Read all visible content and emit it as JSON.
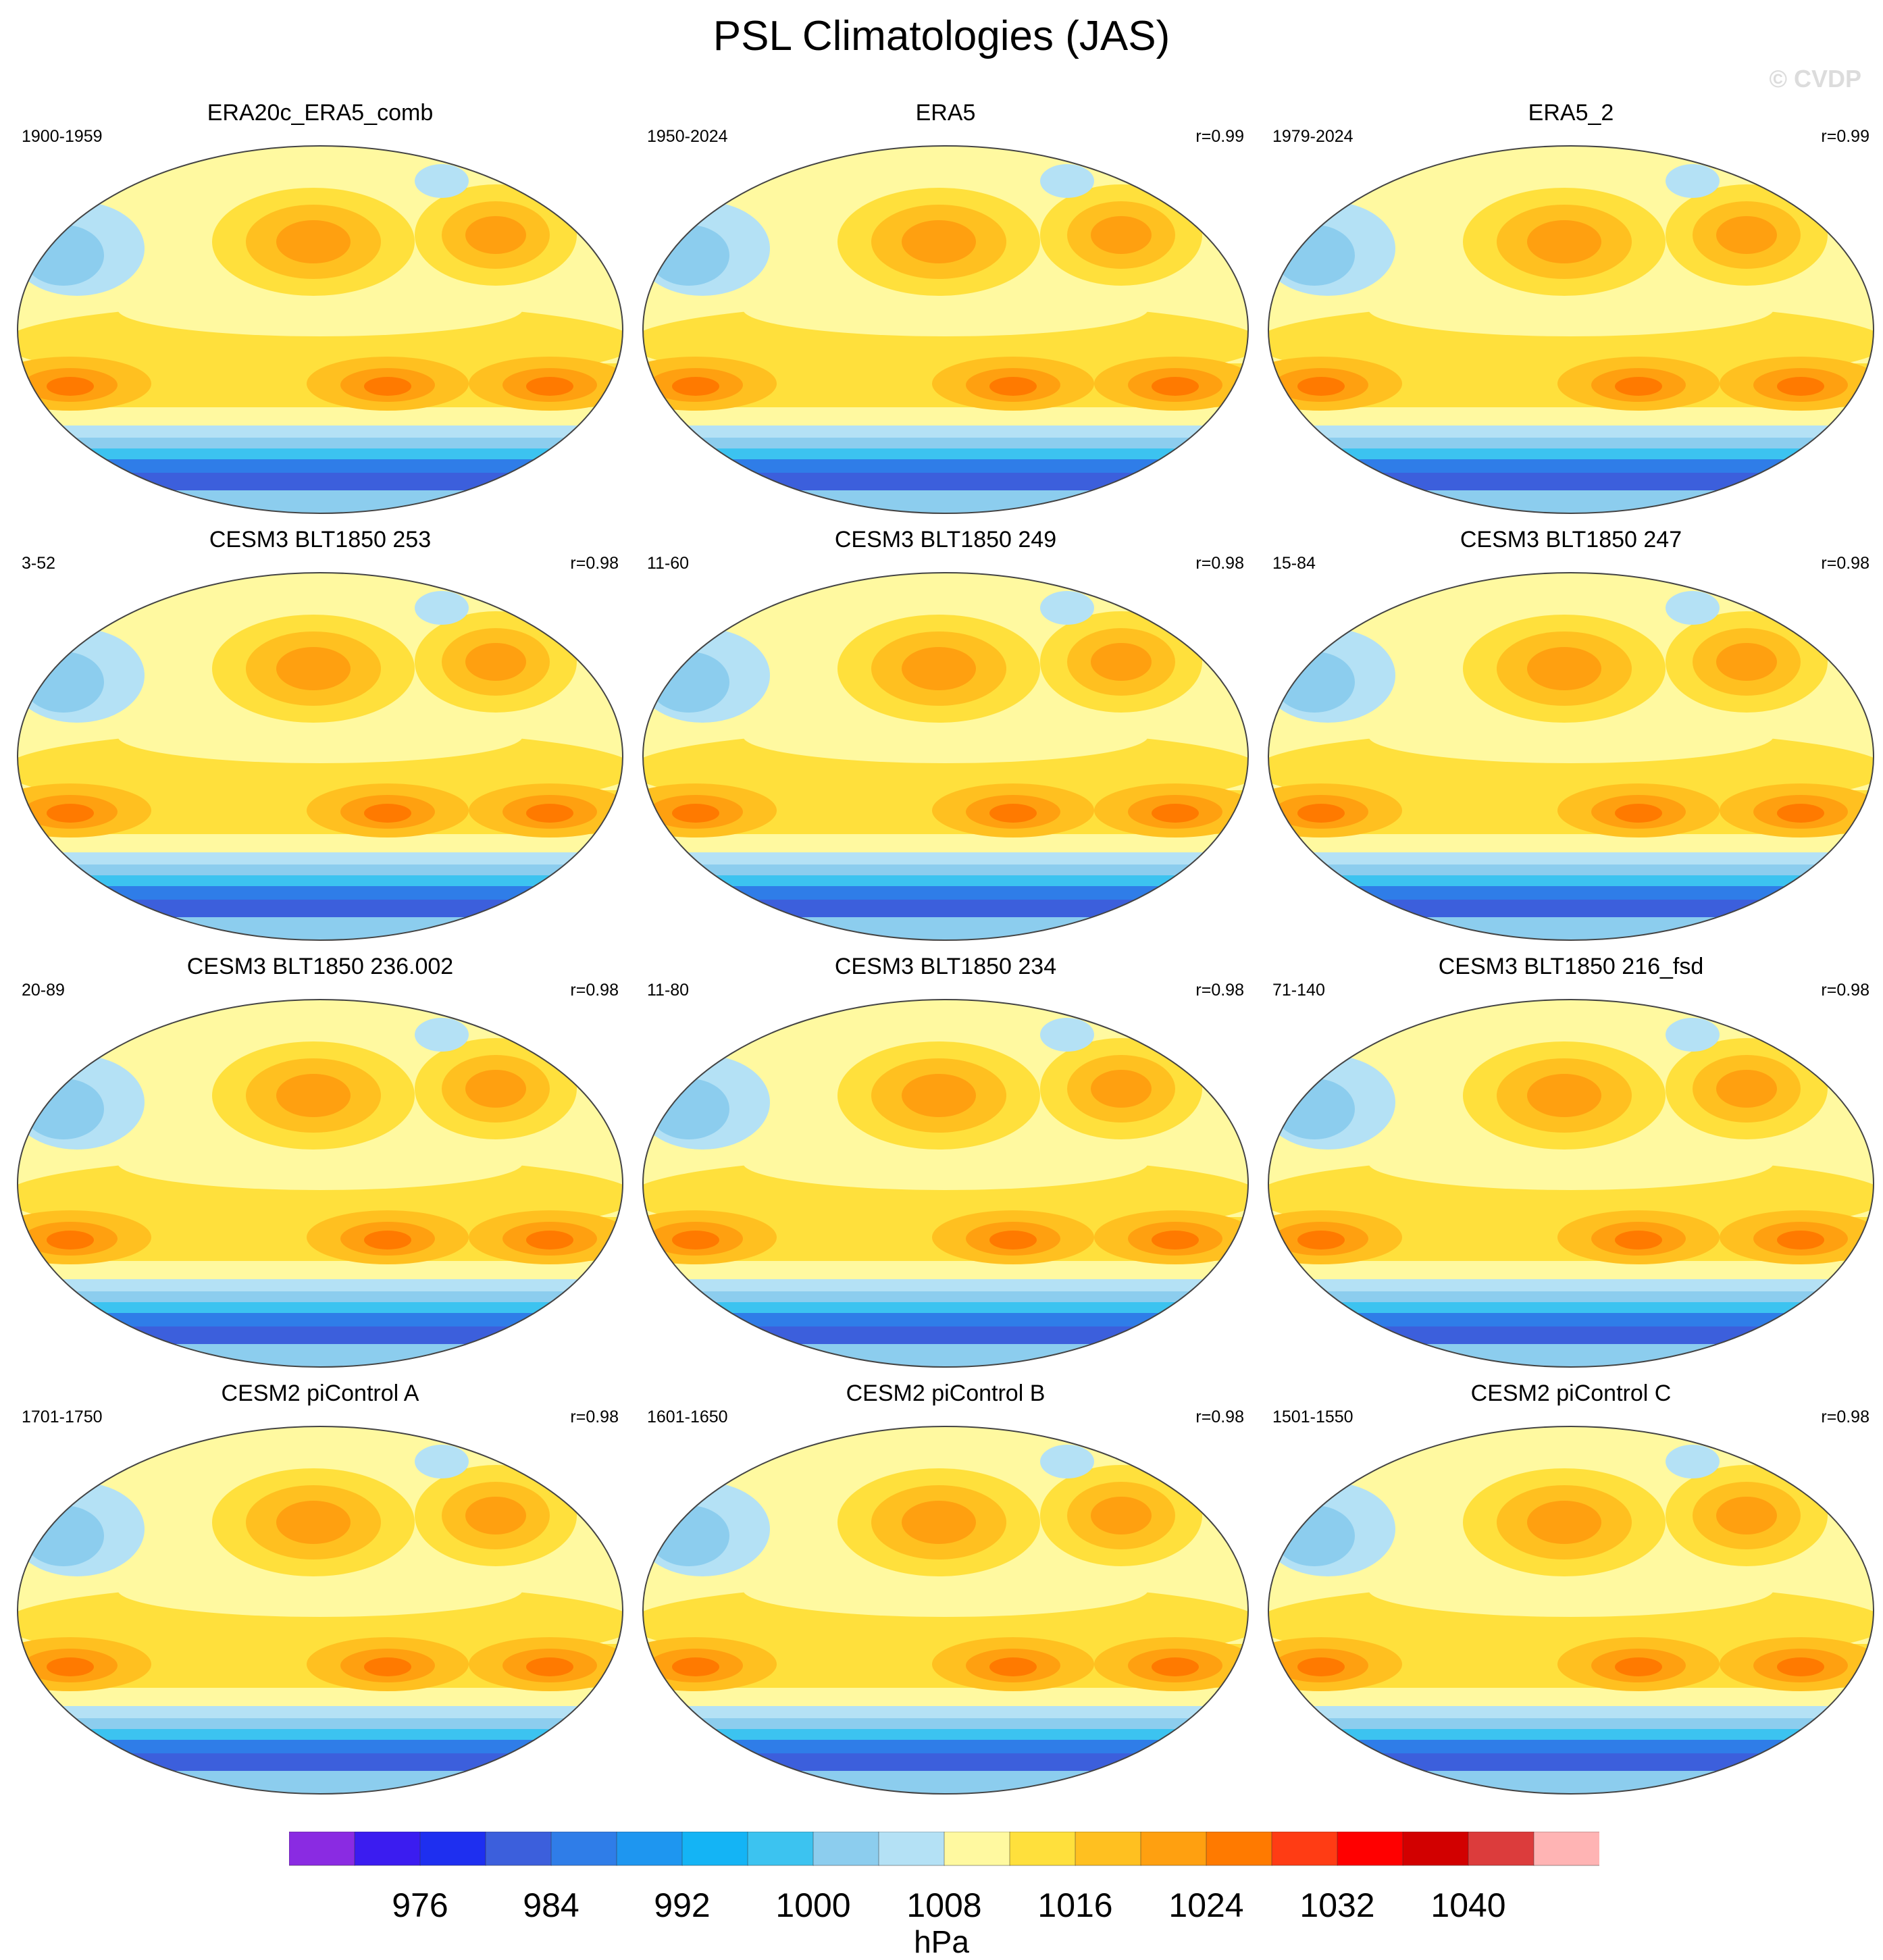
{
  "title": "PSL Climatologies (JAS)",
  "watermark": "© CVDP",
  "panels": [
    {
      "title": "ERA20c_ERA5_comb",
      "period": "1900-1959",
      "corr": ""
    },
    {
      "title": "ERA5",
      "period": "1950-2024",
      "corr": "r=0.99"
    },
    {
      "title": "ERA5_2",
      "period": "1979-2024",
      "corr": "r=0.99"
    },
    {
      "title": "CESM3 BLT1850 253",
      "period": "3-52",
      "corr": "r=0.98"
    },
    {
      "title": "CESM3 BLT1850 249",
      "period": "11-60",
      "corr": "r=0.98"
    },
    {
      "title": "CESM3 BLT1850 247",
      "period": "15-84",
      "corr": "r=0.98"
    },
    {
      "title": "CESM3 BLT1850 236.002",
      "period": "20-89",
      "corr": "r=0.98"
    },
    {
      "title": "CESM3 BLT1850 234",
      "period": "11-80",
      "corr": "r=0.98"
    },
    {
      "title": "CESM3 BLT1850 216_fsd",
      "period": "71-140",
      "corr": "r=0.98"
    },
    {
      "title": "CESM2 piControl A",
      "period": "1701-1750",
      "corr": "r=0.98"
    },
    {
      "title": "CESM2 piControl B",
      "period": "1601-1650",
      "corr": "r=0.98"
    },
    {
      "title": "CESM2 piControl C",
      "period": "1501-1550",
      "corr": "r=0.98"
    }
  ],
  "colorbar": {
    "units": "hPa",
    "labels": [
      "976",
      "984",
      "992",
      "1000",
      "1008",
      "1016",
      "1024",
      "1032",
      "1040"
    ],
    "colors": [
      "#8a2be2",
      "#3b1cf0",
      "#1e2ff0",
      "#3c5fdc",
      "#2f7de8",
      "#1e96f0",
      "#14b4f5",
      "#3cc3f0",
      "#8ccdee",
      "#b4e1f5",
      "#fff9a0",
      "#ffe03c",
      "#ffc020",
      "#ffa010",
      "#ff7a00",
      "#ff3c14",
      "#ff0000",
      "#d20000",
      "#dc3c3c",
      "#ffb4b4"
    ]
  }
}
